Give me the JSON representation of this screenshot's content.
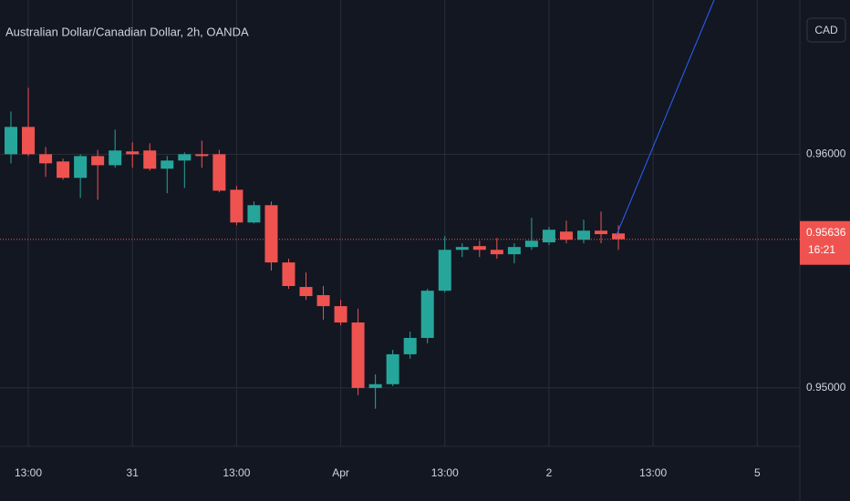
{
  "chart_data": {
    "type": "candlestick",
    "title": "Australian Dollar/Canadian Dollar, 2h, OANDA",
    "currency": "CAD",
    "categories": [
      null,
      "13:00",
      null,
      null,
      null,
      null,
      null,
      "31",
      null,
      null,
      null,
      null,
      null,
      "13:00",
      null,
      null,
      null,
      null,
      null,
      "Apr",
      null,
      null,
      null,
      null,
      null,
      "13:00",
      null,
      null,
      null,
      null,
      null,
      "2",
      null,
      null,
      null,
      null,
      null,
      "13:00",
      null,
      null,
      null,
      null,
      null,
      "5"
    ],
    "open": [
      0.96,
      0.96117,
      0.96,
      0.95969,
      0.95899,
      0.95992,
      0.95953,
      0.96012,
      0.96016,
      0.95938,
      0.95973,
      0.96,
      0.96,
      0.95848,
      0.95708,
      0.95782,
      0.95537,
      0.95432,
      0.95397,
      0.9535,
      0.9528,
      0.95,
      0.95016,
      0.95144,
      0.95214,
      0.95416,
      0.95591,
      0.95607,
      0.95591,
      0.95572,
      0.95603,
      0.95623,
      0.95669,
      0.95634,
      0.95673,
      0.95661,
      null,
      null,
      null,
      null,
      null,
      null,
      null,
      null
    ],
    "high": [
      0.96183,
      0.96284,
      0.96031,
      0.95981,
      0.96,
      0.96019,
      0.96105,
      0.96051,
      0.96047,
      0.95992,
      0.96008,
      0.96058,
      0.96019,
      0.95864,
      0.95798,
      0.95798,
      0.95553,
      0.95494,
      0.95436,
      0.95377,
      0.95339,
      0.95058,
      0.95163,
      0.95241,
      0.95424,
      0.9565,
      0.95619,
      0.9563,
      0.95642,
      0.95619,
      0.95728,
      0.95689,
      0.95716,
      0.9572,
      0.95755,
      0.95696,
      null,
      null,
      null,
      null,
      null,
      null,
      null,
      null
    ],
    "low": [
      0.95961,
      0.95992,
      0.95903,
      0.95891,
      0.95813,
      0.95805,
      0.95942,
      0.95942,
      0.9593,
      0.95833,
      0.95856,
      0.95942,
      0.95837,
      0.95696,
      0.95704,
      0.95502,
      0.95424,
      0.95377,
      0.95292,
      0.95268,
      0.94969,
      0.94911,
      0.95008,
      0.95125,
      0.95191,
      0.95409,
      0.9556,
      0.9556,
      0.95553,
      0.95533,
      0.95591,
      0.95611,
      0.95619,
      0.95619,
      0.95619,
      0.95591,
      null,
      null,
      null,
      null,
      null,
      null,
      null,
      null
    ],
    "close": [
      0.96117,
      0.96,
      0.95961,
      0.95899,
      0.95992,
      0.95953,
      0.96016,
      0.96,
      0.95938,
      0.95973,
      0.96,
      0.95992,
      0.95844,
      0.95708,
      0.95782,
      0.95537,
      0.95436,
      0.95393,
      0.9535,
      0.9528,
      0.95,
      0.95016,
      0.95144,
      0.95214,
      0.95416,
      0.95591,
      0.95603,
      0.95591,
      0.95572,
      0.95603,
      0.9563,
      0.95677,
      0.95634,
      0.95673,
      0.95658,
      0.95636,
      null,
      null,
      null,
      null,
      null,
      null,
      null,
      null
    ],
    "last_close_label": "0.95636",
    "countdown": "16:21",
    "up_color": "#26a69a",
    "down_color": "#ef5350",
    "ylim": [
      0.9475,
      0.9666
    ],
    "yticks": [
      {
        "value": 0.96,
        "label": "0.96000"
      },
      {
        "value": 0.95,
        "label": "0.95000"
      }
    ],
    "grid": true
  }
}
